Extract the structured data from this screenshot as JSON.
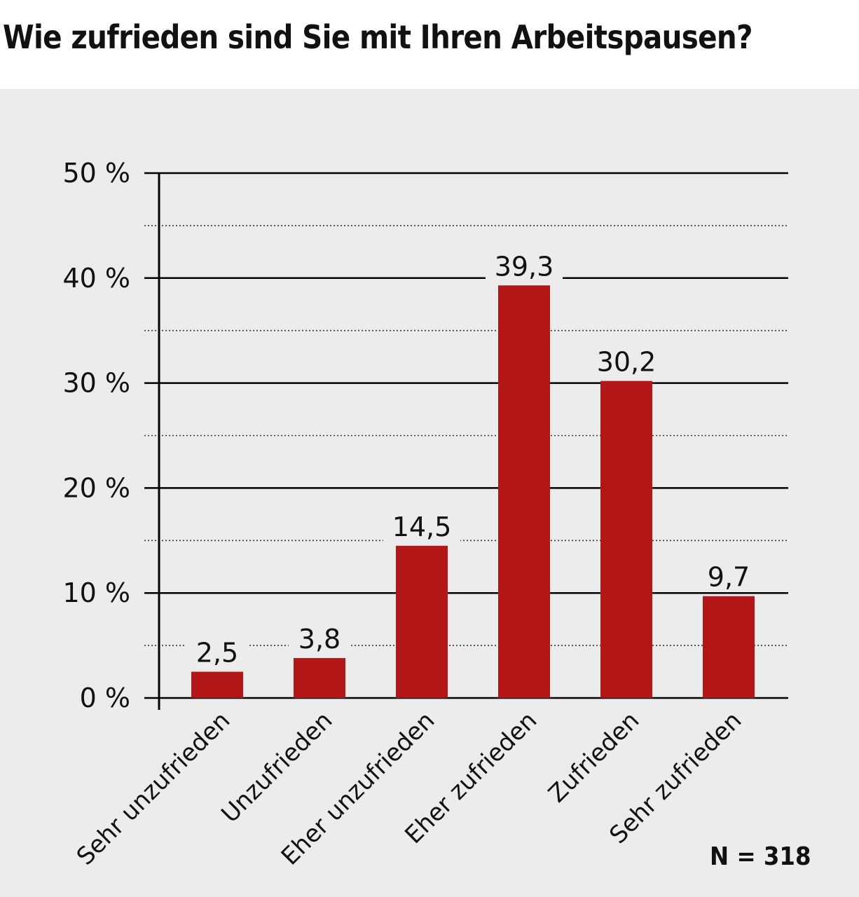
{
  "title": "Wie zufrieden sind Sie mit Ihren Arbeitspausen?",
  "note": "N = 318",
  "chart_data": {
    "type": "bar",
    "title": "Wie zufrieden sind Sie mit Ihren Arbeitspausen?",
    "categories": [
      "Sehr unzufrieden",
      "Unzufrieden",
      "Eher unzufrieden",
      "Eher zufrieden",
      "Zufrieden",
      "Sehr zufrieden"
    ],
    "values": [
      2.5,
      3.8,
      14.5,
      39.3,
      30.2,
      9.7
    ],
    "value_labels": [
      "2,5",
      "3,8",
      "14,5",
      "39,3",
      "30,2",
      "9,7"
    ],
    "yticks": [
      0,
      10,
      20,
      30,
      40,
      50
    ],
    "ytick_labels": [
      "0 %",
      "10 %",
      "20 %",
      "30 %",
      "40 %",
      "50 %"
    ],
    "ylim": [
      0,
      50
    ],
    "grid": "major solid lines every 10 %, dotted minor lines every 5 %",
    "bar_color": "#b21617",
    "background_color": "#ececec",
    "xlabel": "",
    "ylabel": ""
  }
}
